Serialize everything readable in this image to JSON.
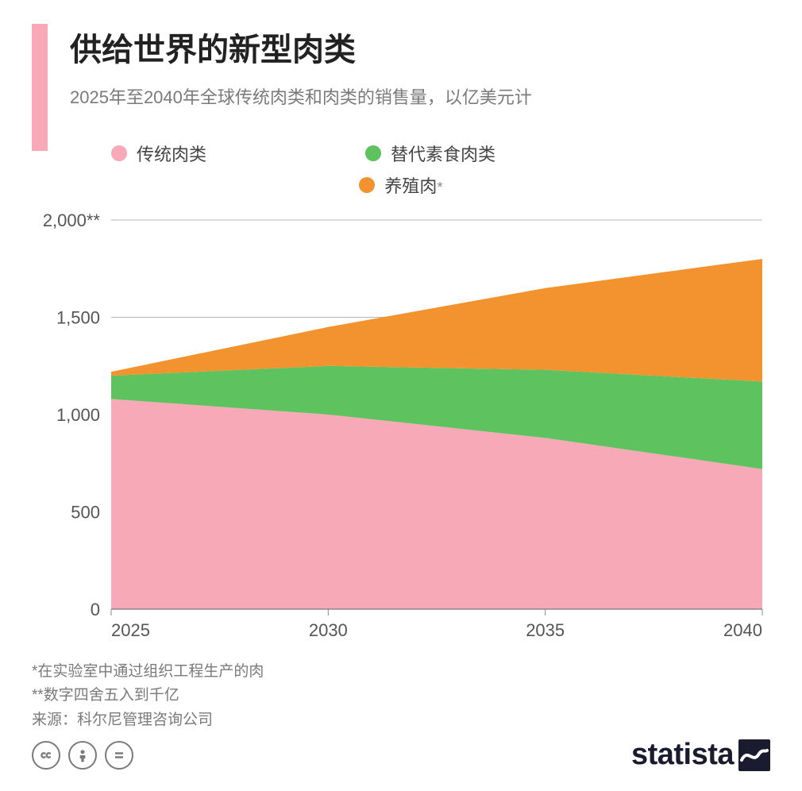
{
  "accent_color": "#f8a9b8",
  "title": "供给世界的新型肉类",
  "subtitle": "2025年至2040年全球传统肉类和肉类的销售量，以亿美元计",
  "legend": {
    "items": [
      {
        "label": "传统肉类",
        "color": "#f8a9b8"
      },
      {
        "label": "替代素食肉类",
        "color": "#5ec35e"
      },
      {
        "label": "养殖肉",
        "color": "#f2932f",
        "suffix": "*"
      }
    ]
  },
  "chart": {
    "type": "stacked-area",
    "x": [
      2025,
      2030,
      2035,
      2040
    ],
    "xlim": [
      2025,
      2040
    ],
    "ylim": [
      0,
      2000
    ],
    "ytick_step": 500,
    "ytop_label": "2,000**",
    "series": [
      {
        "key": "conventional",
        "color": "#f8a9b8",
        "values": [
          1080,
          1000,
          880,
          720
        ]
      },
      {
        "key": "vegan",
        "color": "#5ec35e",
        "values": [
          120,
          250,
          350,
          450
        ]
      },
      {
        "key": "cultured",
        "color": "#f2932f",
        "values": [
          20,
          200,
          420,
          630
        ]
      }
    ],
    "background_color": "#ffffff",
    "grid_color": "#b5b5b5",
    "axis_color": "#888888",
    "tick_fontsize": 22,
    "tick_color": "#555555"
  },
  "footnotes": {
    "n1": "*在实验室中通过组织工程生产的肉",
    "n2": "**数字四舍五入到千亿",
    "source": "来源：科尔尼管理咨询公司"
  },
  "license": {
    "cc": "cc",
    "by": "by",
    "nd": "nd"
  },
  "brand": "statista"
}
